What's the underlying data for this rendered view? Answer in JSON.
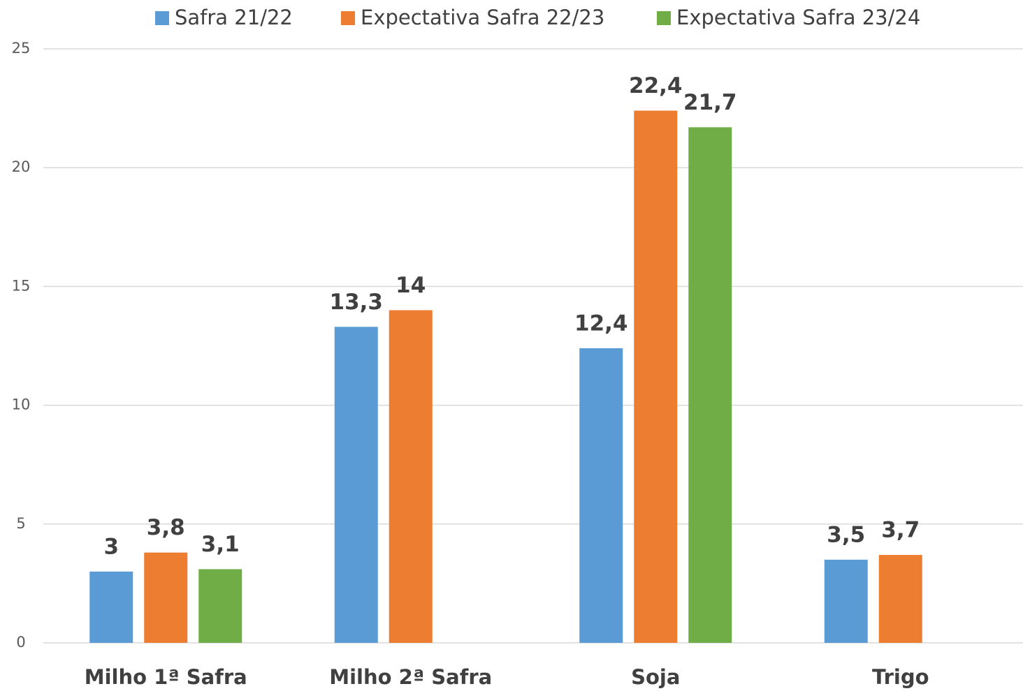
{
  "chart_data": {
    "type": "bar",
    "categories": [
      "Milho 1ª Safra",
      "Milho 2ª Safra",
      "Soja",
      "Trigo"
    ],
    "series": [
      {
        "name": "Safra 21/22",
        "color": "#5b9bd5",
        "values": [
          3,
          13.3,
          12.4,
          3.5
        ],
        "value_labels": [
          "3",
          "13,3",
          "12,4",
          "3,5"
        ]
      },
      {
        "name": "Expectativa Safra 22/23",
        "color": "#ed7d31",
        "values": [
          3.8,
          14,
          22.4,
          3.7
        ],
        "value_labels": [
          "3,8",
          "14",
          "22,4",
          "3,7"
        ]
      },
      {
        "name": "Expectativa Safra 23/24",
        "color": "#70ad47",
        "values": [
          3.1,
          null,
          21.7,
          null
        ],
        "value_labels": [
          "3,1",
          null,
          "21,7",
          null
        ]
      }
    ],
    "ylim": [
      0,
      25
    ],
    "yticks": [
      0,
      5,
      10,
      15,
      20,
      25
    ],
    "grid": true,
    "legend": "top"
  }
}
